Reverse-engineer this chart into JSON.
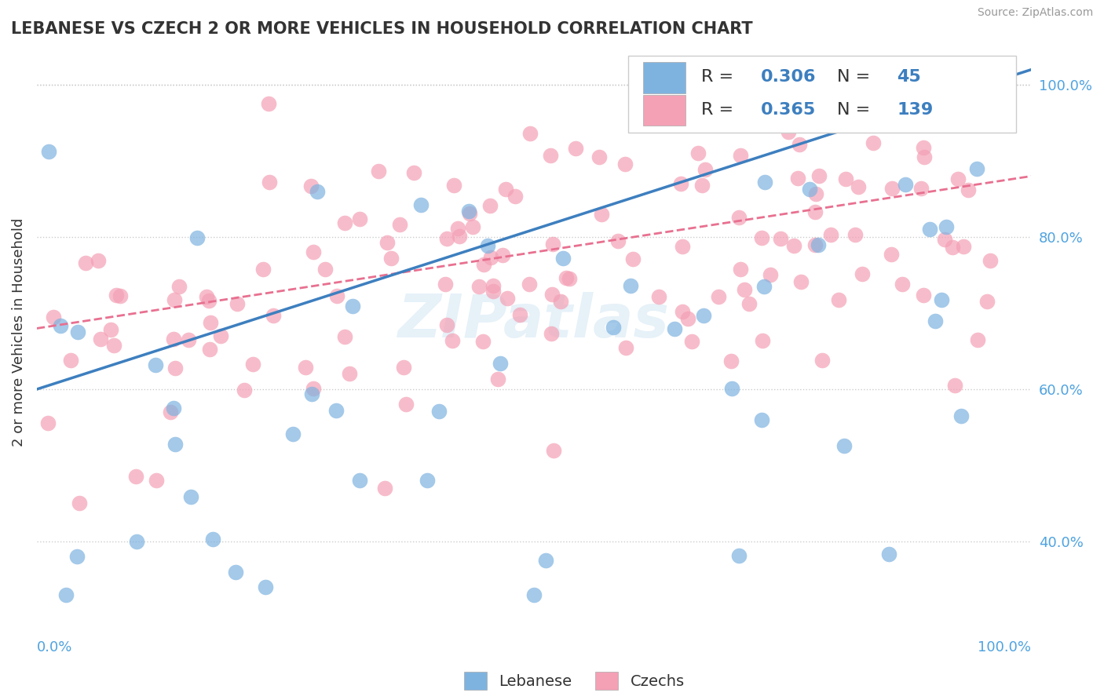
{
  "title": "LEBANESE VS CZECH 2 OR MORE VEHICLES IN HOUSEHOLD CORRELATION CHART",
  "source": "Source: ZipAtlas.com",
  "ylabel": "2 or more Vehicles in Household",
  "xlabel_bottom_left": "0.0%",
  "xlabel_bottom_right": "100.0%",
  "watermark": "ZIPatlas",
  "legend_r_blue": "R = 0.306",
  "legend_n_blue": "N =  45",
  "legend_r_pink": "R = 0.365",
  "legend_n_pink": "N = 139",
  "legend_label_blue": "Lebanese",
  "legend_label_pink": "Czechs",
  "blue_color": "#7EB3E0",
  "pink_color": "#F4A0B5",
  "blue_line_color": "#3D7FBF",
  "pink_line_color": "#E87090",
  "axis_label_color": "#4FA3E0",
  "ytick_labels": [
    "40.0%",
    "60.0%",
    "80.0%",
    "100.0%"
  ],
  "ytick_values": [
    0.4,
    0.6,
    0.8,
    1.0
  ],
  "xlim": [
    0.0,
    1.0
  ],
  "ylim": [
    0.3,
    1.05
  ],
  "blue_line_y_start": 0.6,
  "blue_line_y_end": 1.02,
  "pink_line_y_start": 0.68,
  "pink_line_y_end": 0.88,
  "background_color": "#ffffff",
  "grid_color": "#cccccc"
}
